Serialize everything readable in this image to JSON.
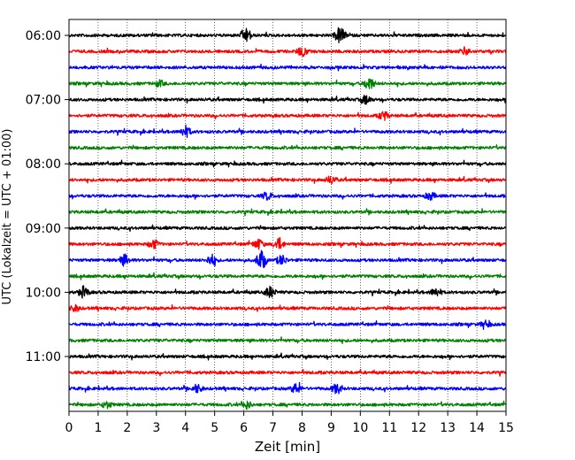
{
  "chart_data": {
    "type": "line",
    "title": "",
    "xlabel": "Zeit  [min]",
    "ylabel": "UTC (Lokalzeit = UTC + 01:00)",
    "xlim": [
      0,
      15
    ],
    "x_ticks": [
      "0",
      "1",
      "2",
      "3",
      "4",
      "5",
      "6",
      "7",
      "8",
      "9",
      "10",
      "11",
      "12",
      "13",
      "14",
      "15"
    ],
    "y_ticks": [
      "06:00",
      "07:00",
      "08:00",
      "09:00",
      "10:00",
      "11:00"
    ],
    "trace_interval_minutes": 15,
    "trace_start_times": [
      "06:00",
      "06:15",
      "06:30",
      "06:45",
      "07:00",
      "07:15",
      "07:30",
      "07:45",
      "08:00",
      "08:15",
      "08:30",
      "08:45",
      "09:00",
      "09:15",
      "09:30",
      "09:45",
      "10:00",
      "10:15",
      "10:30",
      "10:45",
      "11:00",
      "11:15",
      "11:30",
      "11:45"
    ],
    "color_cycle": [
      "#000000",
      "#ff0000",
      "#0000ff",
      "#008000"
    ],
    "grid": {
      "vertical": true,
      "style": "dotted"
    },
    "traces_note": "",
    "events": [
      {
        "trace": 0,
        "minute": 6.1,
        "amp": 1.0
      },
      {
        "trace": 0,
        "minute": 9.3,
        "amp": 1.4
      },
      {
        "trace": 1,
        "minute": 8.0,
        "amp": 0.8
      },
      {
        "trace": 1,
        "minute": 13.6,
        "amp": 0.6
      },
      {
        "trace": 3,
        "minute": 10.3,
        "amp": 1.1
      },
      {
        "trace": 3,
        "minute": 3.1,
        "amp": 0.5
      },
      {
        "trace": 4,
        "minute": 10.2,
        "amp": 0.7
      },
      {
        "trace": 5,
        "minute": 10.8,
        "amp": 0.7
      },
      {
        "trace": 6,
        "minute": 4.0,
        "amp": 0.9
      },
      {
        "trace": 9,
        "minute": 9.0,
        "amp": 0.6
      },
      {
        "trace": 10,
        "minute": 6.8,
        "amp": 0.6
      },
      {
        "trace": 10,
        "minute": 12.4,
        "amp": 0.6
      },
      {
        "trace": 13,
        "minute": 2.9,
        "amp": 0.7
      },
      {
        "trace": 13,
        "minute": 6.5,
        "amp": 0.8
      },
      {
        "trace": 13,
        "minute": 7.2,
        "amp": 1.0
      },
      {
        "trace": 14,
        "minute": 1.9,
        "amp": 0.9
      },
      {
        "trace": 14,
        "minute": 4.9,
        "amp": 0.9
      },
      {
        "trace": 14,
        "minute": 6.6,
        "amp": 1.6
      },
      {
        "trace": 14,
        "minute": 7.3,
        "amp": 0.8
      },
      {
        "trace": 16,
        "minute": 0.5,
        "amp": 0.9
      },
      {
        "trace": 16,
        "minute": 6.9,
        "amp": 0.9
      },
      {
        "trace": 16,
        "minute": 12.6,
        "amp": 0.7
      },
      {
        "trace": 17,
        "minute": 0.2,
        "amp": 0.5
      },
      {
        "trace": 18,
        "minute": 14.3,
        "amp": 0.5
      },
      {
        "trace": 22,
        "minute": 4.4,
        "amp": 0.7
      },
      {
        "trace": 22,
        "minute": 7.8,
        "amp": 0.8
      },
      {
        "trace": 22,
        "minute": 9.2,
        "amp": 0.8
      },
      {
        "trace": 23,
        "minute": 6.1,
        "amp": 0.6
      },
      {
        "trace": 23,
        "minute": 1.3,
        "amp": 0.5
      }
    ]
  }
}
